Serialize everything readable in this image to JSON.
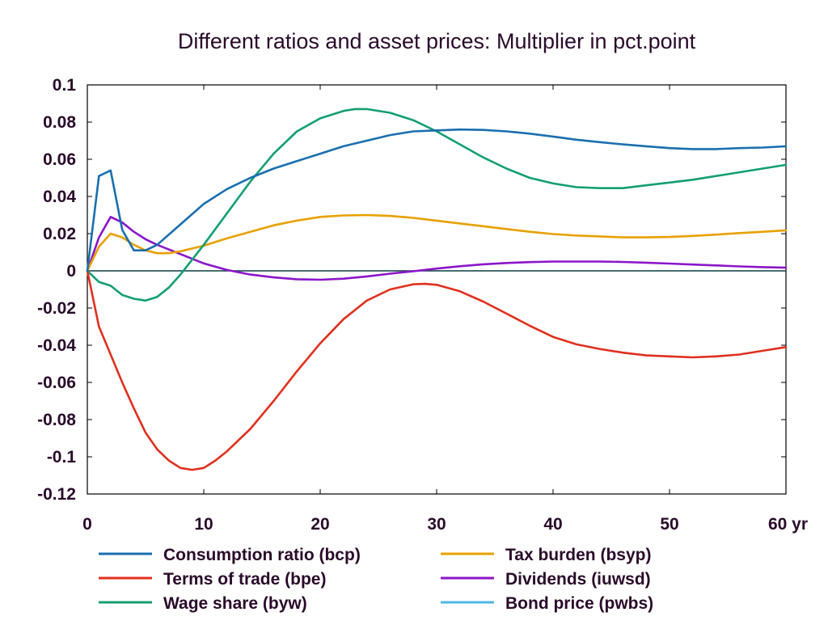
{
  "chart_data": {
    "type": "line",
    "title": "Different ratios and asset prices: Multiplier in pct.point",
    "xlim": [
      0,
      60
    ],
    "ylim": [
      -0.12,
      0.1
    ],
    "x_ticks": [
      0,
      10,
      20,
      30,
      40,
      50,
      60
    ],
    "x_tick_labels": [
      "0",
      "10",
      "20",
      "30",
      "40",
      "50",
      "60 yr"
    ],
    "y_ticks": [
      0.1,
      0.08,
      0.06,
      0.04,
      0.02,
      0,
      -0.02,
      -0.04,
      -0.06,
      -0.08,
      -0.1,
      -0.12
    ],
    "y_tick_labels": [
      "0.1",
      "0.08",
      "0.06",
      "0.04",
      "0.02",
      "0",
      "-0.02",
      "-0.04",
      "-0.06",
      "-0.08",
      "-0.1",
      "-0.12"
    ],
    "grid": false,
    "legend_position": "bottom",
    "series": [
      {
        "name": "Consumption ratio (bcp)",
        "color": "#1a6fae",
        "x": [
          0,
          1,
          2,
          3,
          4,
          5,
          6,
          8,
          10,
          12,
          14,
          16,
          18,
          20,
          22,
          24,
          26,
          28,
          30,
          32,
          34,
          36,
          38,
          40,
          42,
          44,
          46,
          48,
          50,
          52,
          54,
          56,
          58,
          60
        ],
        "values": [
          0,
          0.051,
          0.054,
          0.022,
          0.011,
          0.011,
          0.014,
          0.025,
          0.036,
          0.044,
          0.05,
          0.055,
          0.059,
          0.063,
          0.067,
          0.07,
          0.073,
          0.075,
          0.0755,
          0.076,
          0.0758,
          0.075,
          0.0738,
          0.0722,
          0.0705,
          0.0692,
          0.068,
          0.067,
          0.066,
          0.0655,
          0.0655,
          0.066,
          0.0663,
          0.067
        ]
      },
      {
        "name": "Terms of trade (bpe)",
        "color": "#e0301e",
        "x": [
          0,
          1,
          2,
          3,
          4,
          5,
          6,
          7,
          8,
          9,
          10,
          11,
          12,
          14,
          16,
          18,
          20,
          22,
          24,
          26,
          28,
          29,
          30,
          32,
          34,
          36,
          38,
          40,
          42,
          44,
          46,
          48,
          50,
          52,
          54,
          56,
          58,
          60
        ],
        "values": [
          0,
          -0.03,
          -0.045,
          -0.06,
          -0.074,
          -0.087,
          -0.096,
          -0.102,
          -0.106,
          -0.107,
          -0.106,
          -0.102,
          -0.097,
          -0.085,
          -0.07,
          -0.054,
          -0.039,
          -0.026,
          -0.016,
          -0.01,
          -0.0072,
          -0.007,
          -0.0075,
          -0.011,
          -0.0165,
          -0.023,
          -0.0295,
          -0.0355,
          -0.0395,
          -0.042,
          -0.044,
          -0.0455,
          -0.046,
          -0.0465,
          -0.046,
          -0.045,
          -0.043,
          -0.041
        ]
      },
      {
        "name": "Wage share (byw)",
        "color": "#139f72",
        "x": [
          0,
          1,
          2,
          3,
          4,
          5,
          6,
          7,
          8,
          9,
          10,
          12,
          14,
          16,
          18,
          20,
          22,
          23,
          24,
          26,
          28,
          30,
          32,
          34,
          36,
          38,
          40,
          42,
          44,
          46,
          48,
          50,
          52,
          54,
          56,
          58,
          60
        ],
        "values": [
          0,
          -0.006,
          -0.008,
          -0.013,
          -0.015,
          -0.016,
          -0.014,
          -0.009,
          -0.002,
          0.006,
          0.014,
          0.031,
          0.048,
          0.063,
          0.075,
          0.082,
          0.086,
          0.087,
          0.087,
          0.085,
          0.081,
          0.075,
          0.068,
          0.061,
          0.055,
          0.05,
          0.047,
          0.045,
          0.0445,
          0.0445,
          0.046,
          0.0475,
          0.049,
          0.051,
          0.053,
          0.055,
          0.057
        ]
      },
      {
        "name": "Tax burden (bsyp)",
        "color": "#e8a100",
        "x": [
          0,
          1,
          2,
          3,
          4,
          5,
          6,
          7,
          8,
          10,
          12,
          14,
          16,
          18,
          20,
          22,
          24,
          26,
          28,
          30,
          32,
          34,
          36,
          38,
          40,
          42,
          44,
          46,
          48,
          50,
          52,
          54,
          56,
          58,
          60
        ],
        "values": [
          0,
          0.013,
          0.02,
          0.018,
          0.014,
          0.011,
          0.0095,
          0.0095,
          0.0105,
          0.0135,
          0.0175,
          0.021,
          0.0245,
          0.027,
          0.029,
          0.0298,
          0.03,
          0.0295,
          0.0285,
          0.027,
          0.0255,
          0.024,
          0.0225,
          0.021,
          0.0198,
          0.019,
          0.0185,
          0.018,
          0.018,
          0.0182,
          0.0188,
          0.0195,
          0.0203,
          0.021,
          0.0218
        ]
      },
      {
        "name": "Dividends (iuwsd)",
        "color": "#8b16c9",
        "x": [
          0,
          1,
          2,
          3,
          4,
          5,
          6,
          8,
          10,
          12,
          14,
          16,
          18,
          20,
          22,
          24,
          26,
          28,
          30,
          32,
          34,
          36,
          38,
          40,
          42,
          44,
          46,
          48,
          50,
          52,
          54,
          56,
          58,
          60
        ],
        "values": [
          0,
          0.018,
          0.029,
          0.026,
          0.021,
          0.017,
          0.014,
          0.009,
          0.004,
          0.0005,
          -0.002,
          -0.0035,
          -0.0045,
          -0.0048,
          -0.0042,
          -0.003,
          -0.0015,
          -0.0002,
          0.0012,
          0.0025,
          0.0035,
          0.0042,
          0.0047,
          0.005,
          0.005,
          0.005,
          0.0048,
          0.0044,
          0.0039,
          0.0034,
          0.0029,
          0.0024,
          0.002,
          0.0017
        ]
      },
      {
        "name": "Bond price (pwbs)",
        "color": "#4fb7e3",
        "x": [
          0,
          60
        ],
        "values": [
          0,
          0
        ]
      }
    ]
  }
}
